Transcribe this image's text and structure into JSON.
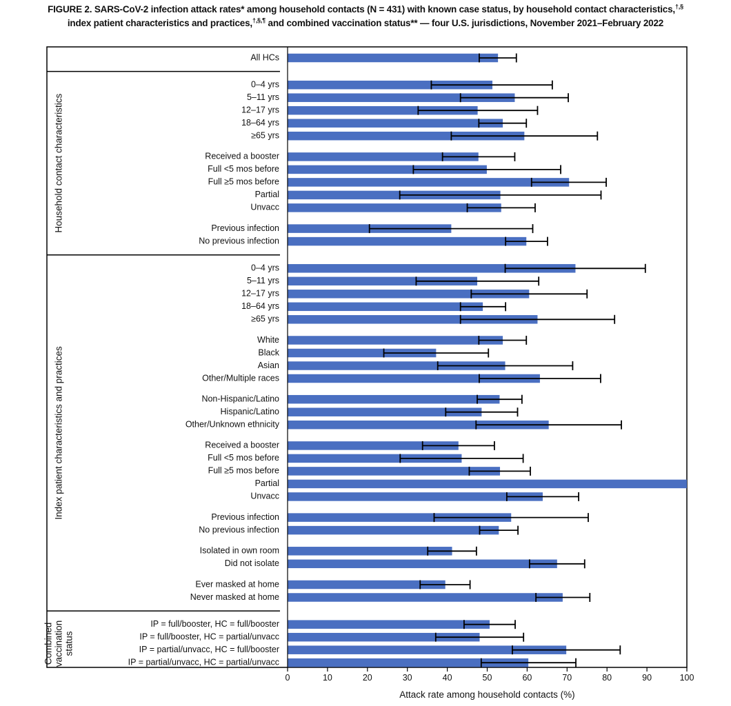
{
  "title": {
    "line1_main": "FIGURE 2. SARS-CoV-2 infection attack rates* among household contacts (N = 431) with known case status, by household contact characteristics,",
    "line1_sup": "†,§",
    "line2_main": "index patient characteristics and practices,",
    "line2_sup": "†,§,¶",
    "line2_rest": " and combined vaccination status** — four U.S. jurisdictions, November 2021–February 2022"
  },
  "colors": {
    "bar": "#4a6fc1",
    "error_bar": "#000000",
    "frame": "#000000"
  },
  "chart_data": {
    "type": "bar",
    "orientation": "horizontal",
    "xlabel": "Attack rate among household contacts (%)",
    "xlim": [
      0,
      100
    ],
    "xticks": [
      0,
      10,
      20,
      30,
      40,
      50,
      60,
      70,
      80,
      90,
      100
    ],
    "groups": [
      {
        "label": "",
        "lines": []
      },
      {
        "label": "Household contact characteristics",
        "lines": [
          "Household contact characteristics"
        ]
      },
      {
        "label": "Index patient characteristics and practices",
        "lines": [
          "Index patient characteristics and practices"
        ]
      },
      {
        "label": "Combined vaccination status",
        "lines": [
          "Combined",
          "vaccination",
          "status"
        ]
      }
    ],
    "rows": [
      {
        "group": 0,
        "label": "All HCs",
        "value": 52.7,
        "ci": [
          48.0,
          57.3
        ]
      },
      {
        "group": 1,
        "label": "0–4 yrs",
        "value": 51.3,
        "ci": [
          36.0,
          66.3
        ]
      },
      {
        "group": 1,
        "label": "5–11 yrs",
        "value": 56.9,
        "ci": [
          43.3,
          70.3
        ]
      },
      {
        "group": 1,
        "label": "12–17 yrs",
        "value": 47.6,
        "ci": [
          32.7,
          62.6
        ]
      },
      {
        "group": 1,
        "label": "18–64 yrs",
        "value": 53.9,
        "ci": [
          47.9,
          59.8
        ]
      },
      {
        "group": 1,
        "label": "≥65 yrs",
        "value": 59.3,
        "ci": [
          41.0,
          77.6
        ]
      },
      {
        "group": 1,
        "label": "Received a booster",
        "value": 47.8,
        "ci": [
          38.8,
          56.9
        ]
      },
      {
        "group": 1,
        "label": "Full <5 mos before",
        "value": 49.9,
        "ci": [
          31.5,
          68.4
        ]
      },
      {
        "group": 1,
        "label": "Full ≥5 mos before",
        "value": 70.5,
        "ci": [
          61.1,
          79.8
        ]
      },
      {
        "group": 1,
        "label": "Partial",
        "value": 53.3,
        "ci": [
          28.1,
          78.5
        ]
      },
      {
        "group": 1,
        "label": "Unvacc",
        "value": 53.5,
        "ci": [
          45.0,
          62.0
        ]
      },
      {
        "group": 1,
        "label": "Previous infection",
        "value": 41.0,
        "ci": [
          20.5,
          61.4
        ]
      },
      {
        "group": 1,
        "label": "No previous infection",
        "value": 59.8,
        "ci": [
          54.6,
          65.1
        ]
      },
      {
        "group": 2,
        "label": "0–4 yrs",
        "value": 72.1,
        "ci": [
          54.5,
          89.6
        ]
      },
      {
        "group": 2,
        "label": "5–11 yrs",
        "value": 47.5,
        "ci": [
          32.2,
          62.9
        ]
      },
      {
        "group": 2,
        "label": "12–17 yrs",
        "value": 60.5,
        "ci": [
          46.0,
          75.0
        ]
      },
      {
        "group": 2,
        "label": "18–64 yrs",
        "value": 48.9,
        "ci": [
          43.3,
          54.6
        ]
      },
      {
        "group": 2,
        "label": "≥65 yrs",
        "value": 62.6,
        "ci": [
          43.3,
          81.9
        ]
      },
      {
        "group": 2,
        "label": "White",
        "value": 53.9,
        "ci": [
          47.9,
          59.8
        ]
      },
      {
        "group": 2,
        "label": "Black",
        "value": 37.2,
        "ci": [
          24.1,
          50.3
        ]
      },
      {
        "group": 2,
        "label": "Asian",
        "value": 54.5,
        "ci": [
          37.6,
          71.4
        ]
      },
      {
        "group": 2,
        "label": "Other/Multiple races",
        "value": 63.2,
        "ci": [
          48.0,
          78.4
        ]
      },
      {
        "group": 2,
        "label": "Non-Hispanic/Latino",
        "value": 53.1,
        "ci": [
          47.5,
          58.7
        ]
      },
      {
        "group": 2,
        "label": "Hispanic/Latino",
        "value": 48.6,
        "ci": [
          39.6,
          57.6
        ]
      },
      {
        "group": 2,
        "label": "Other/Unknown ethnicity",
        "value": 65.4,
        "ci": [
          47.2,
          83.6
        ]
      },
      {
        "group": 2,
        "label": "Received a booster",
        "value": 42.8,
        "ci": [
          33.8,
          51.8
        ]
      },
      {
        "group": 2,
        "label": "Full <5 mos before",
        "value": 43.6,
        "ci": [
          28.2,
          59.0
        ]
      },
      {
        "group": 2,
        "label": "Full ≥5 mos before",
        "value": 53.2,
        "ci": [
          45.5,
          60.8
        ]
      },
      {
        "group": 2,
        "label": "Partial",
        "value": 100.0,
        "ci": null
      },
      {
        "group": 2,
        "label": "Unvacc",
        "value": 63.9,
        "ci": [
          54.9,
          72.9
        ]
      },
      {
        "group": 2,
        "label": "Previous infection",
        "value": 56.0,
        "ci": [
          36.7,
          75.3
        ]
      },
      {
        "group": 2,
        "label": "No previous infection",
        "value": 52.9,
        "ci": [
          48.1,
          57.7
        ]
      },
      {
        "group": 2,
        "label": "Isolated in own room",
        "value": 41.2,
        "ci": [
          35.1,
          47.3
        ]
      },
      {
        "group": 2,
        "label": "Did not isolate",
        "value": 67.5,
        "ci": [
          60.6,
          74.4
        ]
      },
      {
        "group": 2,
        "label": "Ever masked at home",
        "value": 39.5,
        "ci": [
          33.2,
          45.7
        ]
      },
      {
        "group": 2,
        "label": "Never masked at home",
        "value": 68.9,
        "ci": [
          62.2,
          75.7
        ]
      },
      {
        "group": 3,
        "label": "IP = full/booster, HC = full/booster",
        "value": 50.6,
        "ci": [
          44.2,
          57.0
        ]
      },
      {
        "group": 3,
        "label": "IP = full/booster, HC = partial/unvacc",
        "value": 48.1,
        "ci": [
          37.1,
          59.1
        ]
      },
      {
        "group": 3,
        "label": "IP = partial/unvacc, HC = full/booster",
        "value": 69.8,
        "ci": [
          56.3,
          83.3
        ]
      },
      {
        "group": 3,
        "label": "IP = partial/unvacc, HC = partial/unvacc",
        "value": 60.3,
        "ci": [
          48.5,
          72.2
        ]
      }
    ]
  }
}
